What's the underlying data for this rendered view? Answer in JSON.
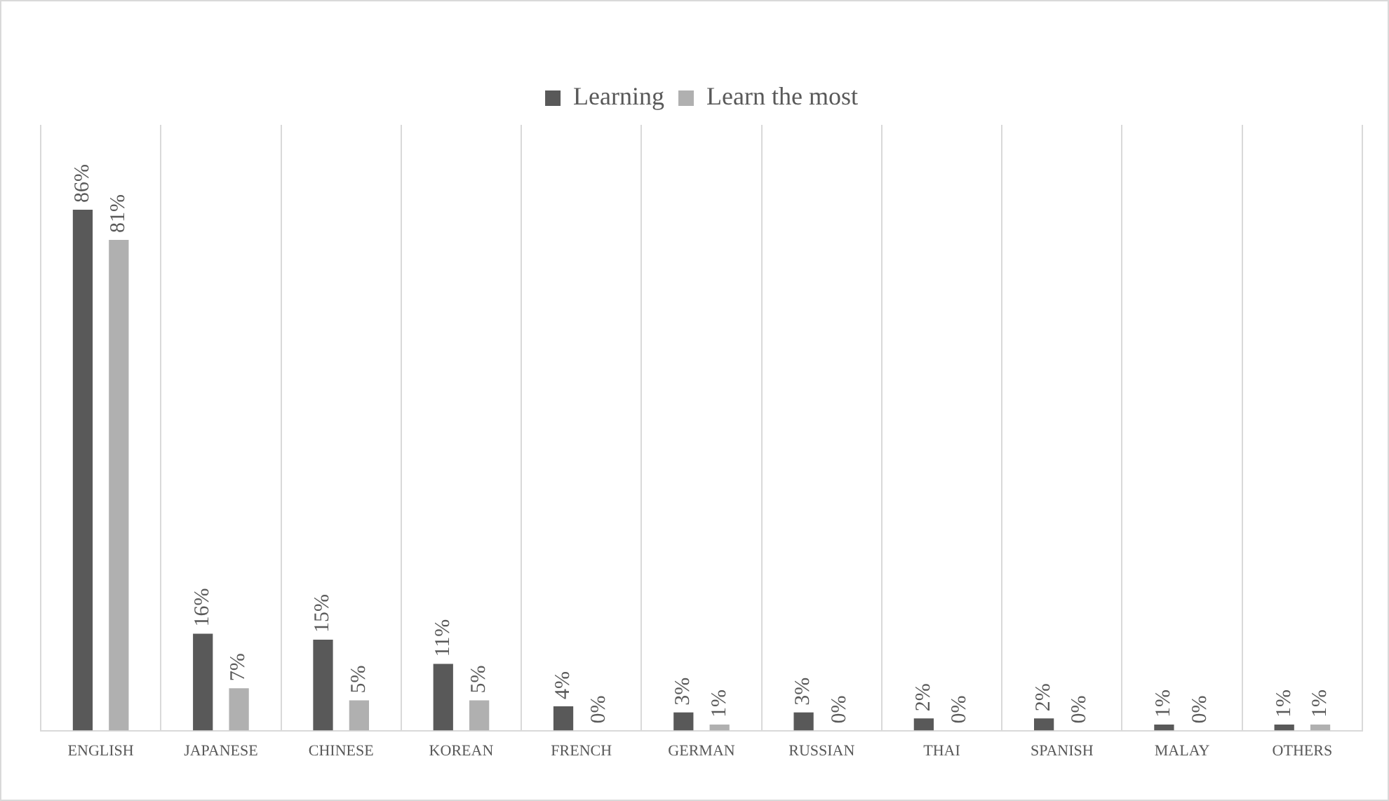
{
  "chart_data": {
    "type": "bar",
    "categories": [
      "ENGLISH",
      "JAPANESE",
      "CHINESE",
      "KOREAN",
      "FRENCH",
      "GERMAN",
      "RUSSIAN",
      "THAI",
      "SPANISH",
      "MALAY",
      "OTHERS"
    ],
    "series": [
      {
        "name": "Learning",
        "color": "#595959",
        "values": [
          86,
          16,
          15,
          11,
          4,
          3,
          3,
          2,
          2,
          1,
          1
        ],
        "value_labels": [
          "86%",
          "16%",
          "15%",
          "11%",
          "4%",
          "3%",
          "3%",
          "2%",
          "2%",
          "1%",
          "1%"
        ]
      },
      {
        "name": "Learn the most",
        "color": "#b0b0b0",
        "values": [
          81,
          7,
          5,
          5,
          0,
          1,
          0,
          0,
          0,
          0,
          1
        ],
        "value_labels": [
          "81%",
          "7%",
          "5%",
          "5%",
          "0%",
          "1%",
          "0%",
          "0%",
          "0%",
          "0%",
          "1%"
        ]
      }
    ],
    "grid": "x",
    "legend": "top"
  }
}
